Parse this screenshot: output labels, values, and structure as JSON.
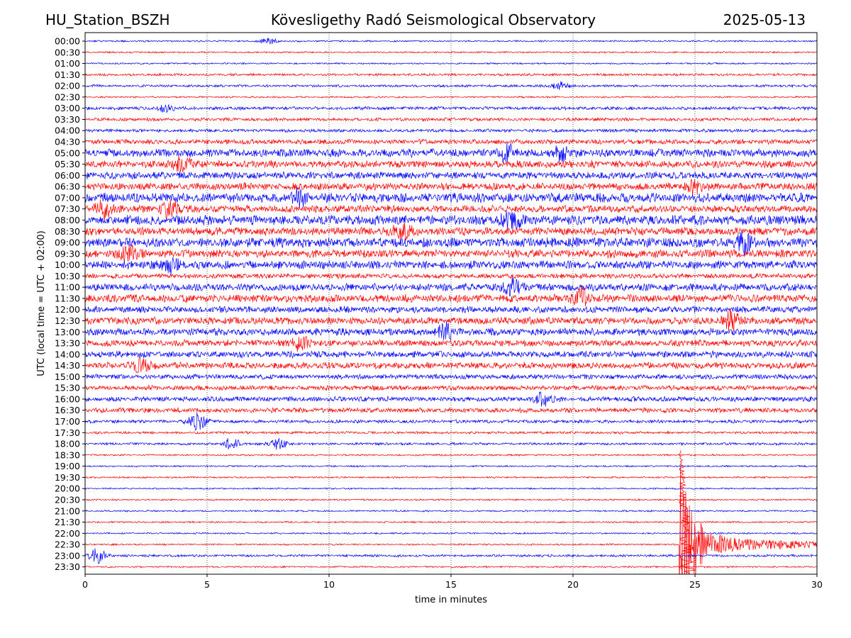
{
  "header": {
    "station": "HU_Station_BSZH",
    "observatory": "Kövesligethy Radó Seismological Observatory",
    "date": "2025-05-13"
  },
  "chart_data": {
    "type": "line",
    "subtype": "helicorder",
    "xlabel": "time in minutes",
    "ylabel": "UTC (local time = UTC + 02:00)",
    "xlim": [
      0,
      30
    ],
    "x_ticks": [
      0,
      5,
      10,
      15,
      20,
      25,
      30
    ],
    "x_gridlines": [
      5,
      10,
      15,
      20,
      25
    ],
    "grid": "vertical dotted",
    "colors": [
      "#0000ff",
      "#ff0000"
    ],
    "row_labels": [
      "00:00",
      "00:30",
      "01:00",
      "01:30",
      "02:00",
      "02:30",
      "03:00",
      "03:30",
      "04:00",
      "04:30",
      "05:00",
      "05:30",
      "06:00",
      "06:30",
      "07:00",
      "07:30",
      "08:00",
      "08:30",
      "09:00",
      "09:30",
      "10:00",
      "10:30",
      "11:00",
      "11:30",
      "12:00",
      "12:30",
      "13:00",
      "13:30",
      "14:00",
      "14:30",
      "15:00",
      "15:30",
      "16:00",
      "16:30",
      "17:00",
      "17:30",
      "18:00",
      "18:30",
      "19:00",
      "19:30",
      "20:00",
      "20:30",
      "21:00",
      "21:30",
      "22:00",
      "22:30",
      "23:00",
      "23:30"
    ],
    "noise_level": [
      1,
      1,
      1,
      1.5,
      1.5,
      1,
      2,
      2,
      2,
      3,
      5,
      4.5,
      4.5,
      4.5,
      6,
      4.5,
      6,
      5,
      6,
      5,
      5,
      3,
      4.5,
      5,
      4,
      4.5,
      4.5,
      4,
      4,
      4,
      3,
      3,
      3,
      3,
      2,
      1.5,
      1.5,
      1,
      1,
      1,
      1,
      1,
      1,
      1,
      1,
      1,
      1.5,
      1
    ],
    "events": [
      {
        "row": "00:00",
        "minute": 7.5,
        "amplitude": 4
      },
      {
        "row": "02:00",
        "minute": 19.5,
        "amplitude": 6
      },
      {
        "row": "03:00",
        "minute": 3.3,
        "amplitude": 5
      },
      {
        "row": "05:00",
        "minute": 17.3,
        "amplitude": 10
      },
      {
        "row": "05:00",
        "minute": 19.5,
        "amplitude": 8
      },
      {
        "row": "05:30",
        "minute": 4.0,
        "amplitude": 10
      },
      {
        "row": "06:30",
        "minute": 25.0,
        "amplitude": 9
      },
      {
        "row": "07:00",
        "minute": 8.8,
        "amplitude": 10
      },
      {
        "row": "07:30",
        "minute": 0.8,
        "amplitude": 12
      },
      {
        "row": "07:30",
        "minute": 3.5,
        "amplitude": 13
      },
      {
        "row": "08:00",
        "minute": 17.5,
        "amplitude": 11
      },
      {
        "row": "08:30",
        "minute": 13.0,
        "amplitude": 10
      },
      {
        "row": "09:00",
        "minute": 27.0,
        "amplitude": 13
      },
      {
        "row": "09:30",
        "minute": 1.8,
        "amplitude": 12
      },
      {
        "row": "10:00",
        "minute": 3.5,
        "amplitude": 10
      },
      {
        "row": "11:00",
        "minute": 17.5,
        "amplitude": 11
      },
      {
        "row": "11:30",
        "minute": 20.3,
        "amplitude": 12
      },
      {
        "row": "12:30",
        "minute": 26.5,
        "amplitude": 13
      },
      {
        "row": "13:00",
        "minute": 14.8,
        "amplitude": 10
      },
      {
        "row": "13:30",
        "minute": 8.8,
        "amplitude": 10
      },
      {
        "row": "14:30",
        "minute": 2.3,
        "amplitude": 9
      },
      {
        "row": "16:00",
        "minute": 18.8,
        "amplitude": 9
      },
      {
        "row": "17:00",
        "minute": 4.6,
        "amplitude": 12
      },
      {
        "row": "18:00",
        "minute": 6.0,
        "amplitude": 8
      },
      {
        "row": "18:00",
        "minute": 7.9,
        "amplitude": 7
      },
      {
        "row": "23:00",
        "minute": 0.5,
        "amplitude": 10
      }
    ],
    "earthquake": {
      "start_row": "19:00",
      "onset_minute": 24.35,
      "trace_row": "22:30",
      "color": "#ff0000"
    }
  }
}
